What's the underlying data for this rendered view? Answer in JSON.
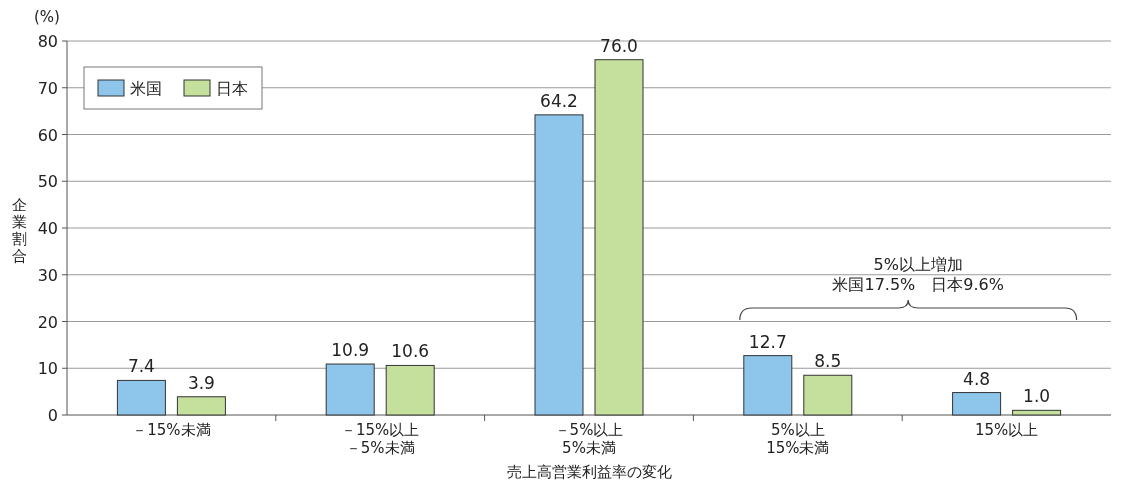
{
  "chart_data": {
    "type": "bar",
    "xlabel": "売上高営業利益率の変化",
    "ylabel": "企業割合",
    "categories": [
      "－15%未満",
      "－15%以上－5%未満",
      "－5%以上5%未満",
      "5%以上15%未満",
      "15%以上"
    ],
    "series": [
      {
        "name": "米国",
        "color": "#8ec5ea",
        "values": [
          7.4,
          10.9,
          64.2,
          12.7,
          4.8
        ],
        "value_labels": [
          "7.4",
          "10.9",
          "64.2",
          "12.7",
          "4.8"
        ]
      },
      {
        "name": "日本",
        "color": "#c5e09c",
        "values": [
          3.9,
          10.6,
          76.0,
          8.5,
          1.0
        ],
        "value_labels": [
          "3.9",
          "10.6",
          "76.0",
          "8.5",
          "1.0"
        ]
      }
    ],
    "ylim": [
      0,
      80
    ],
    "yticks": [
      0,
      10,
      20,
      30,
      40,
      50,
      60,
      70,
      80
    ],
    "grid": "y",
    "legend": "top left",
    "annotations": [
      "(%)",
      "5%以上増加",
      "米国17.5%　日本9.6%"
    ]
  }
}
